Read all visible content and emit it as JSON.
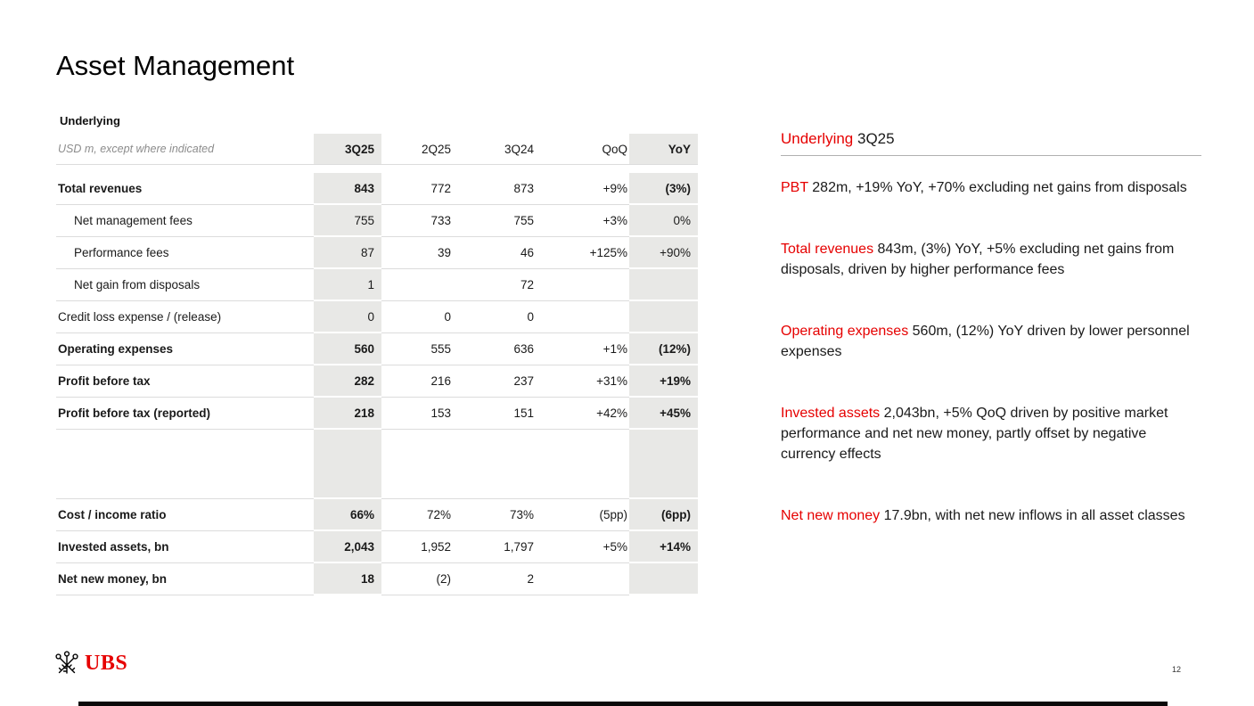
{
  "page": {
    "title": "Asset Management"
  },
  "table": {
    "section_label": "Underlying",
    "unit_label": "USD m, except where indicated",
    "columns": [
      "3Q25",
      "2Q25",
      "3Q24",
      "QoQ",
      "YoY"
    ],
    "rows": [
      {
        "label": "Total revenues",
        "bold": true,
        "indent": false,
        "values": [
          "843",
          "772",
          "873",
          "+9%",
          "(3%)"
        ]
      },
      {
        "label": "Net management fees",
        "bold": false,
        "indent": true,
        "values": [
          "755",
          "733",
          "755",
          "+3%",
          "0%"
        ]
      },
      {
        "label": "Performance fees",
        "bold": false,
        "indent": true,
        "values": [
          "87",
          "39",
          "46",
          "+125%",
          "+90%"
        ]
      },
      {
        "label": "Net gain from disposals",
        "bold": false,
        "indent": true,
        "values": [
          "1",
          "",
          "72",
          "",
          ""
        ]
      },
      {
        "label": "Credit loss expense / (release)",
        "bold": false,
        "indent": false,
        "values": [
          "0",
          "0",
          "0",
          "",
          ""
        ]
      },
      {
        "label": "Operating expenses",
        "bold": true,
        "indent": false,
        "values": [
          "560",
          "555",
          "636",
          "+1%",
          "(12%)"
        ]
      },
      {
        "label": "Profit before tax",
        "bold": true,
        "indent": false,
        "values": [
          "282",
          "216",
          "237",
          "+31%",
          "+19%"
        ]
      },
      {
        "label": "Profit before tax (reported)",
        "bold": true,
        "indent": false,
        "values": [
          "218",
          "153",
          "151",
          "+42%",
          "+45%"
        ]
      },
      {
        "label": "",
        "spacer": true,
        "values": [
          "",
          "",
          "",
          "",
          ""
        ]
      },
      {
        "label": "Cost / income ratio",
        "bold": true,
        "indent": false,
        "values": [
          "66%",
          "72%",
          "73%",
          "(5pp)",
          "(6pp)"
        ]
      },
      {
        "label": "Invested assets, bn",
        "bold": true,
        "indent": false,
        "values": [
          "2,043",
          "1,952",
          "1,797",
          "+5%",
          "+14%"
        ]
      },
      {
        "label": "Net new money, bn",
        "bold": true,
        "indent": false,
        "values": [
          "18",
          "(2)",
          "2",
          "",
          ""
        ]
      }
    ]
  },
  "commentary": {
    "heading_highlight": "Underlying",
    "heading_rest": "3Q25",
    "bullets": [
      {
        "lead": "PBT",
        "text": "282m, +19% YoY, +70% excluding net gains from disposals"
      },
      {
        "lead": "Total revenues",
        "text": "843m, (3%) YoY, +5% excluding net gains from disposals, driven by higher performance fees"
      },
      {
        "lead": "Operating expenses",
        "text": "560m, (12%) YoY driven by lower personnel expenses"
      },
      {
        "lead": "Invested assets",
        "text": "2,043bn, +5% QoQ driven by positive market performance and net new money, partly offset by negative currency effects"
      },
      {
        "lead": "Net new money",
        "text": "17.9bn, with net new inflows in all asset classes"
      }
    ]
  },
  "footer": {
    "brand": "UBS",
    "page_number": "12"
  },
  "colors": {
    "accent_red": "#e60000",
    "column_shade": "#e8e8e6",
    "row_line": "#dcdcdc"
  }
}
